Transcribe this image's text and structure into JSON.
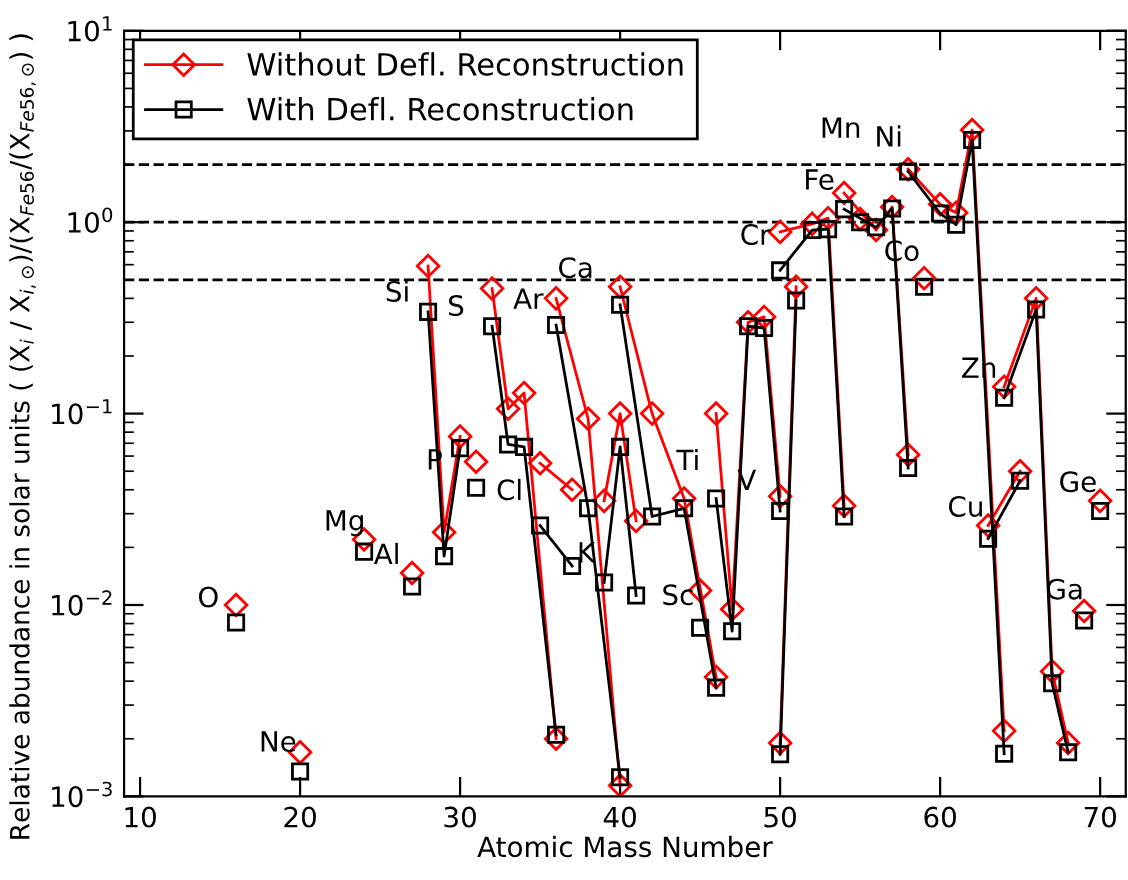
{
  "chart_data": {
    "type": "line",
    "xlabel": "Atomic Mass Number",
    "ylabel": "Relative abundance in solar units ( (X$_{i}$ / X$_{i,⊙}$)/(X$_{Fe56}$/(X$_{Fe56,⊙}$) )",
    "x": [
      16,
      null,
      20,
      null,
      24,
      null,
      27,
      null,
      28,
      29,
      30,
      null,
      31,
      null,
      32,
      33,
      34,
      36,
      null,
      35,
      37,
      null,
      36,
      38,
      40,
      null,
      39,
      40,
      41,
      null,
      40,
      42,
      44,
      46,
      null,
      45,
      null,
      46,
      47,
      48,
      49,
      50,
      null,
      50,
      51,
      null,
      50,
      52,
      53,
      54,
      null,
      55,
      null,
      54,
      56,
      57,
      58,
      null,
      59,
      null,
      58,
      60,
      61,
      62,
      64,
      null,
      63,
      65,
      null,
      64,
      66,
      67,
      68,
      null,
      69,
      null,
      70
    ],
    "series": [
      {
        "name": "Without Defl. Reconstruction",
        "color": "#ff0000",
        "marker": "diamond",
        "values": [
          0.01,
          null,
          0.0017,
          null,
          0.022,
          null,
          0.0147,
          null,
          0.59,
          0.024,
          0.076,
          null,
          0.056,
          null,
          0.45,
          0.106,
          0.128,
          0.002,
          null,
          0.055,
          0.04,
          null,
          0.4,
          0.094,
          0.00114,
          null,
          0.035,
          0.1,
          0.0275,
          null,
          0.46,
          0.1,
          0.036,
          0.0042,
          null,
          0.0119,
          null,
          0.1,
          0.0095,
          0.3,
          0.32,
          0.037,
          null,
          0.0019,
          0.46,
          null,
          0.89,
          0.98,
          1.05,
          0.033,
          null,
          1.04,
          null,
          1.42,
          0.91,
          1.2,
          0.061,
          null,
          0.51,
          null,
          1.89,
          1.24,
          1.12,
          3.03,
          0.0022,
          null,
          0.026,
          0.05,
          null,
          0.138,
          0.4,
          0.0045,
          0.0019,
          null,
          0.0093,
          null,
          0.035
        ]
      },
      {
        "name": "With Defl. Reconstruction",
        "color": "#000000",
        "marker": "square",
        "values": [
          0.0081,
          null,
          0.00135,
          null,
          0.019,
          null,
          0.0125,
          null,
          0.34,
          0.018,
          0.066,
          null,
          0.041,
          null,
          0.286,
          0.069,
          0.067,
          0.0021,
          null,
          0.026,
          0.016,
          null,
          0.29,
          0.032,
          0.00126,
          null,
          0.0131,
          0.067,
          0.0112,
          null,
          0.37,
          0.029,
          0.032,
          0.0037,
          null,
          0.0076,
          null,
          0.036,
          0.0073,
          0.286,
          0.28,
          0.031,
          null,
          0.00166,
          0.39,
          null,
          0.56,
          0.91,
          0.92,
          0.029,
          null,
          1.0,
          null,
          1.17,
          0.94,
          1.18,
          0.052,
          null,
          0.46,
          null,
          1.84,
          1.11,
          0.97,
          2.69,
          0.00167,
          null,
          0.0222,
          0.0446,
          null,
          0.121,
          0.35,
          0.0039,
          0.0017,
          null,
          0.0083,
          null,
          0.031
        ]
      }
    ],
    "log": "y",
    "xlim": [
      9,
      71.6
    ],
    "ylim": [
      0.001,
      10
    ],
    "xticks": [
      10,
      20,
      30,
      40,
      50,
      60,
      70
    ],
    "yticks": [
      {
        "value": 0.001,
        "label": "10$^{−3}$"
      },
      {
        "value": 0.01,
        "label": "10$^{−2}$"
      },
      {
        "value": 0.1,
        "label": "10$^{−1}$"
      },
      {
        "value": 1,
        "label": "10$^{0}$"
      },
      {
        "value": 10,
        "label": "10$^{1}$"
      }
    ],
    "ref_lines": [
      {
        "axis": "y",
        "value": 2,
        "color": "#000000",
        "line_style": "dashed"
      },
      {
        "axis": "y",
        "value": 1,
        "color": "#000000",
        "line_style": "dashed"
      },
      {
        "axis": "y",
        "value": 0.5,
        "color": "#000000",
        "line_style": "dashed"
      }
    ],
    "annotations": [
      {
        "text": "O",
        "x": 16,
        "y": 0.01
      },
      {
        "text": "Ne",
        "x": 20,
        "y": 0.0017
      },
      {
        "text": "Mg",
        "x": 24,
        "y": 0.022
      },
      {
        "text": "Al",
        "x": 27,
        "y": 0.0147
      },
      {
        "text": "Si",
        "x": 28,
        "y": 0.59
      },
      {
        "text": "P",
        "x": 31,
        "y": 0.056
      },
      {
        "text": "S",
        "x": 32,
        "y": 0.45
      },
      {
        "text": "Cl",
        "x": 35,
        "y": 0.026
      },
      {
        "text": "K",
        "x": 37,
        "y": 0.016
      },
      {
        "text": "Ar",
        "x": 36,
        "y": 0.4
      },
      {
        "text": "Ca",
        "x": 40,
        "y": 0.46
      },
      {
        "text": "Ti",
        "x": 46,
        "y": 0.036
      },
      {
        "text": "Sc",
        "x": 45,
        "y": 0.0076
      },
      {
        "text": "V",
        "x": 50,
        "y": 0.037
      },
      {
        "text": "Cr",
        "x": 50,
        "y": 0.56
      },
      {
        "text": "Fe",
        "x": 54,
        "y": 1.42
      },
      {
        "text": "Mn",
        "x": 55,
        "y": 1.04
      },
      {
        "text": "Ni",
        "x": 58,
        "y": 1.89
      },
      {
        "text": "Co",
        "x": 59,
        "y": 0.51
      },
      {
        "text": "Zn",
        "x": 64,
        "y": 0.138
      },
      {
        "text": "Cu",
        "x": 63,
        "y": 0.026
      },
      {
        "text": "Ga",
        "x": 69,
        "y": 0.0093
      },
      {
        "text": "Ge",
        "x": 70,
        "y": 0.035
      }
    ],
    "legend": "top left",
    "grid": false
  }
}
